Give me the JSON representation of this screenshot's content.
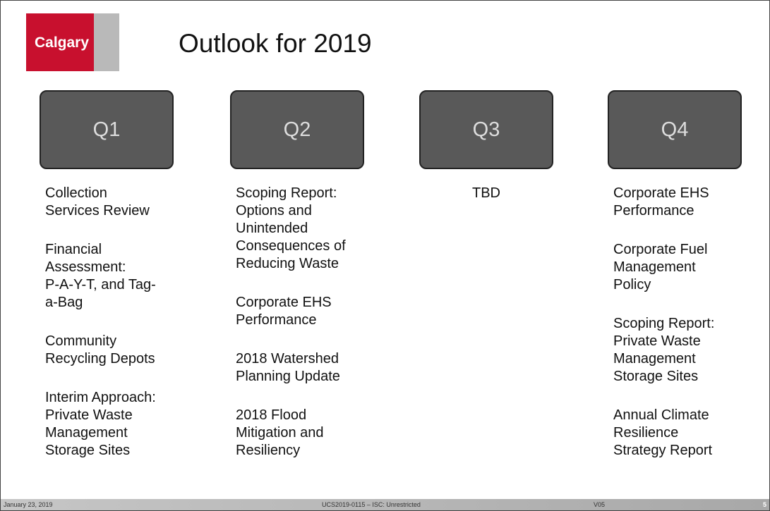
{
  "header": {
    "logo": "Calgary",
    "title": "Outlook for 2019"
  },
  "columns": [
    {
      "heading": "Q1",
      "items": [
        [
          "Collection",
          "Services Review"
        ],
        [
          "Financial",
          "Assessment:",
          "P-A-Y-T, and Tag-",
          "a-Bag"
        ],
        [
          "Community",
          "Recycling Depots"
        ],
        [
          "Interim Approach:",
          "Private Waste",
          "Management",
          "Storage Sites"
        ]
      ]
    },
    {
      "heading": "Q2",
      "items": [
        [
          "Scoping Report:",
          "Options and",
          "Unintended",
          "Consequences of",
          "Reducing Waste"
        ],
        [
          "Corporate EHS",
          "Performance"
        ],
        [
          "2018 Watershed",
          "Planning Update"
        ],
        [
          "2018 Flood",
          "Mitigation and",
          "Resiliency"
        ]
      ]
    },
    {
      "heading": "Q3",
      "items": [
        [
          "TBD"
        ]
      ]
    },
    {
      "heading": "Q4",
      "items": [
        [
          "Corporate EHS",
          "Performance"
        ],
        [
          "Corporate Fuel",
          "Management",
          "Policy"
        ],
        [
          "Scoping Report:",
          "Private Waste",
          "Management",
          "Storage Sites"
        ],
        [
          "Annual Climate",
          "Resilience",
          "Strategy Report"
        ]
      ]
    }
  ],
  "footer": {
    "date": "January 23, 2019",
    "reference": "UCS2019-0115 – ISC: Unrestricted",
    "version": "V05",
    "page": "5"
  }
}
